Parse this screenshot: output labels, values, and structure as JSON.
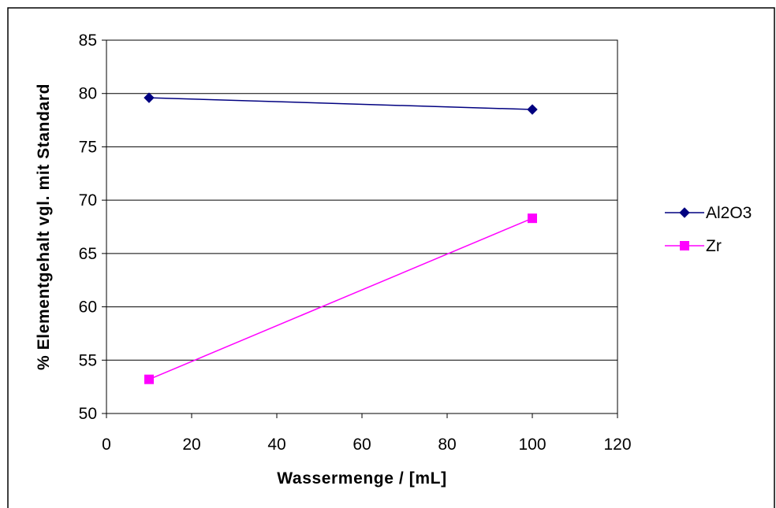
{
  "chart_data": {
    "type": "line",
    "title": "",
    "xlabel": "Wassermenge / [mL]",
    "ylabel": "% Elementgehalt vgl. mit Standard",
    "xlim": [
      0,
      120
    ],
    "ylim": [
      50,
      85
    ],
    "xticks": [
      "0",
      "20",
      "40",
      "60",
      "80",
      "100",
      "120"
    ],
    "yticks": [
      "50",
      "55",
      "60",
      "65",
      "70",
      "75",
      "80",
      "85"
    ],
    "grid": "horizontal",
    "legend_position": "right",
    "series": [
      {
        "name": "Al2O3",
        "color": "#000080",
        "marker": "diamond",
        "points": [
          {
            "x": 10,
            "y": 79.6
          },
          {
            "x": 100,
            "y": 78.5
          }
        ]
      },
      {
        "name": "Zr",
        "color": "#FF00FF",
        "marker": "square",
        "points": [
          {
            "x": 10,
            "y": 53.2
          },
          {
            "x": 100,
            "y": 68.3
          }
        ]
      }
    ]
  }
}
